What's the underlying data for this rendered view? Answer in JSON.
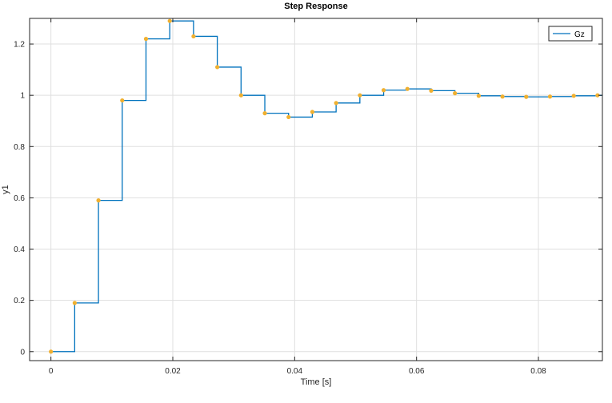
{
  "chart_data": {
    "type": "line",
    "style": "stairs with sample markers",
    "title": "Step Response",
    "xlabel": "Time [s]",
    "ylabel": "y1",
    "xlim": [
      -0.0035,
      0.0905
    ],
    "ylim": [
      -0.035,
      1.3
    ],
    "xticks": [
      0,
      0.02,
      0.04,
      0.06,
      0.08
    ],
    "xtick_labels": [
      "0",
      "0.02",
      "0.04",
      "0.06",
      "0.08"
    ],
    "yticks": [
      0,
      0.2,
      0.4,
      0.6,
      0.8,
      1,
      1.2
    ],
    "ytick_labels": [
      "0",
      "0.2",
      "0.4",
      "0.6",
      "0.8",
      "1",
      "1.2"
    ],
    "grid": true,
    "legend": {
      "position": "top-right",
      "entries": [
        "Gz"
      ]
    },
    "line_color": "#0072bd",
    "marker_color": "#f0b030",
    "series": [
      {
        "name": "Gz",
        "x": [
          0,
          0.0039,
          0.0078,
          0.0117,
          0.0156,
          0.0195,
          0.0234,
          0.0273,
          0.0312,
          0.0351,
          0.039,
          0.0429,
          0.0468,
          0.0507,
          0.0546,
          0.0585,
          0.0624,
          0.0663,
          0.0702,
          0.0741,
          0.078,
          0.0819,
          0.0858,
          0.0897
        ],
        "y": [
          0,
          0.19,
          0.59,
          0.98,
          1.22,
          1.29,
          1.23,
          1.11,
          1.0,
          0.93,
          0.915,
          0.935,
          0.97,
          1.0,
          1.02,
          1.025,
          1.018,
          1.008,
          0.998,
          0.995,
          0.994,
          0.995,
          0.998,
          1.0
        ]
      }
    ]
  }
}
